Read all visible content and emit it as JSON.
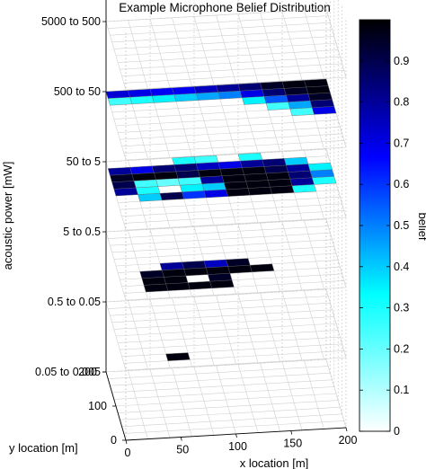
{
  "chart_data": {
    "type": "heatmap",
    "title": "Example Microphone Belief Distribution",
    "xlabel": "x location [m]",
    "ylabel": "y location [m]",
    "zlabel": "acoustic power [mW]",
    "colorbar_label": "belief",
    "x_ticks": [
      "0",
      "50",
      "100",
      "150",
      "200"
    ],
    "y_ticks": [
      "200",
      "100",
      "0"
    ],
    "power_levels": [
      "5000 to 500",
      "500 to 50",
      "50 to 5",
      "5 to 0.5",
      "0.5 to 0.05",
      "0.05 to 0.005"
    ],
    "colorbar_ticks": [
      "0",
      "0.1",
      "0.2",
      "0.3",
      "0.4",
      "0.5",
      "0.6",
      "0.7",
      "0.8",
      "0.9"
    ],
    "colorbar_range": [
      0,
      1
    ],
    "grid": true,
    "colormap": [
      "#ffffff",
      "#00ffff",
      "#0000ff",
      "#000000"
    ],
    "layers": [
      {
        "level": "5000 to 500",
        "cells": []
      },
      {
        "level": "500 to 50",
        "cells": [
          [
            0,
            9,
            0.72
          ],
          [
            1,
            9,
            0.7
          ],
          [
            2,
            9,
            0.68
          ],
          [
            3,
            9,
            0.68
          ],
          [
            4,
            9,
            0.75
          ],
          [
            5,
            9,
            0.8
          ],
          [
            6,
            9,
            0.85
          ],
          [
            7,
            9,
            0.95
          ],
          [
            8,
            9,
            0.98
          ],
          [
            9,
            9,
            0.98
          ],
          [
            0,
            8,
            0.25
          ],
          [
            1,
            8,
            0.3
          ],
          [
            2,
            8,
            0.35
          ],
          [
            3,
            8,
            0.4
          ],
          [
            4,
            8,
            0.45
          ],
          [
            5,
            8,
            0.5
          ],
          [
            6,
            8,
            0.7
          ],
          [
            7,
            8,
            0.85
          ],
          [
            8,
            8,
            0.95
          ],
          [
            9,
            8,
            0.98
          ],
          [
            6,
            7,
            0.35
          ],
          [
            7,
            7,
            0.55
          ],
          [
            8,
            7,
            0.8
          ],
          [
            9,
            7,
            0.95
          ],
          [
            7,
            6,
            0.25
          ],
          [
            8,
            6,
            0.45
          ],
          [
            9,
            6,
            0.85
          ],
          [
            8,
            5,
            0.25
          ],
          [
            9,
            5,
            0.7
          ]
        ]
      },
      {
        "level": "50 to 5",
        "cells": [
          [
            3,
            9,
            0.3
          ],
          [
            4,
            9,
            0.25
          ],
          [
            6,
            9,
            0.3
          ],
          [
            0,
            8,
            0.8
          ],
          [
            1,
            8,
            0.7
          ],
          [
            2,
            8,
            0.85
          ],
          [
            3,
            8,
            0.85
          ],
          [
            4,
            8,
            0.75
          ],
          [
            5,
            8,
            0.7
          ],
          [
            6,
            8,
            0.8
          ],
          [
            7,
            8,
            0.85
          ],
          [
            8,
            8,
            0.4
          ],
          [
            0,
            7,
            0.95
          ],
          [
            1,
            7,
            0.98
          ],
          [
            2,
            7,
            0.98
          ],
          [
            3,
            7,
            0.9
          ],
          [
            4,
            7,
            0.98
          ],
          [
            5,
            7,
            0.98
          ],
          [
            6,
            7,
            0.98
          ],
          [
            7,
            7,
            0.9
          ],
          [
            8,
            7,
            0.8
          ],
          [
            9,
            7,
            0.35
          ],
          [
            0,
            6,
            0.9
          ],
          [
            1,
            6,
            0.25
          ],
          [
            2,
            6,
            0.2
          ],
          [
            3,
            6,
            0.25
          ],
          [
            4,
            6,
            0.8
          ],
          [
            5,
            6,
            0.98
          ],
          [
            6,
            6,
            0.98
          ],
          [
            7,
            6,
            0.98
          ],
          [
            8,
            6,
            0.85
          ],
          [
            9,
            6,
            0.5
          ],
          [
            0,
            5,
            0.8
          ],
          [
            1,
            5,
            0.3
          ],
          [
            3,
            5,
            0.35
          ],
          [
            4,
            5,
            0.4
          ],
          [
            5,
            5,
            0.98
          ],
          [
            6,
            5,
            0.98
          ],
          [
            7,
            5,
            0.98
          ],
          [
            8,
            5,
            0.8
          ],
          [
            9,
            5,
            0.3
          ],
          [
            1,
            4,
            0.4
          ],
          [
            2,
            4,
            0.9
          ],
          [
            3,
            4,
            0.6
          ],
          [
            4,
            4,
            0.7
          ],
          [
            5,
            4,
            0.98
          ],
          [
            6,
            4,
            0.98
          ],
          [
            7,
            4,
            0.98
          ],
          [
            8,
            4,
            0.3
          ]
        ]
      },
      {
        "level": "5 to 0.5",
        "cells": [
          [
            2,
            4,
            0.8
          ],
          [
            3,
            4,
            0.9
          ],
          [
            4,
            4,
            0.75
          ],
          [
            5,
            4,
            0.95
          ],
          [
            1,
            3,
            0.95
          ],
          [
            2,
            3,
            0.98
          ],
          [
            3,
            3,
            0.98
          ],
          [
            4,
            3,
            0.98
          ],
          [
            5,
            3,
            0.98
          ],
          [
            6,
            3,
            0.98
          ],
          [
            1,
            2,
            0.98
          ],
          [
            2,
            2,
            0.98
          ],
          [
            3,
            2,
            0.0
          ],
          [
            4,
            2,
            0.95
          ],
          [
            1,
            1,
            0.98
          ],
          [
            2,
            1,
            0.98
          ],
          [
            3,
            1,
            0.98
          ],
          [
            4,
            1,
            0.98
          ]
        ]
      },
      {
        "level": "0.5 to 0.05",
        "cells": [
          [
            2,
            1,
            0.98
          ]
        ]
      },
      {
        "level": "0.05 to 0.005",
        "cells": []
      }
    ]
  }
}
